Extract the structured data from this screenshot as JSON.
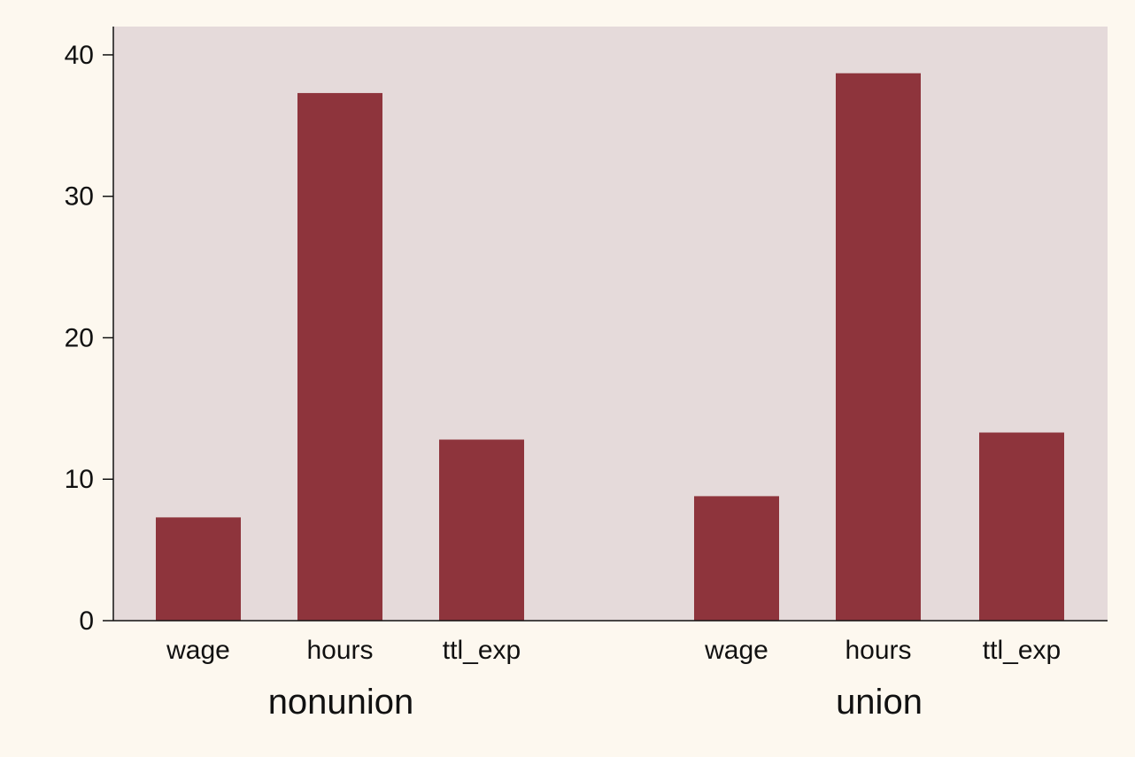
{
  "chart_data": {
    "type": "bar",
    "title": "",
    "xlabel": "",
    "ylabel": "",
    "ylim": [
      0,
      42
    ],
    "yticks": [
      0,
      10,
      20,
      30,
      40
    ],
    "grid": false,
    "legend": "none",
    "colors": {
      "bar": "#8e343c",
      "plot_bg": "#e5dada",
      "page_bg": "#fdf8ef"
    },
    "groups": [
      {
        "name": "nonunion",
        "categories": [
          "wage",
          "hours",
          "ttl_exp"
        ],
        "values": [
          7.3,
          37.3,
          12.8
        ]
      },
      {
        "name": "union",
        "categories": [
          "wage",
          "hours",
          "ttl_exp"
        ],
        "values": [
          8.8,
          38.7,
          13.3
        ]
      }
    ]
  }
}
